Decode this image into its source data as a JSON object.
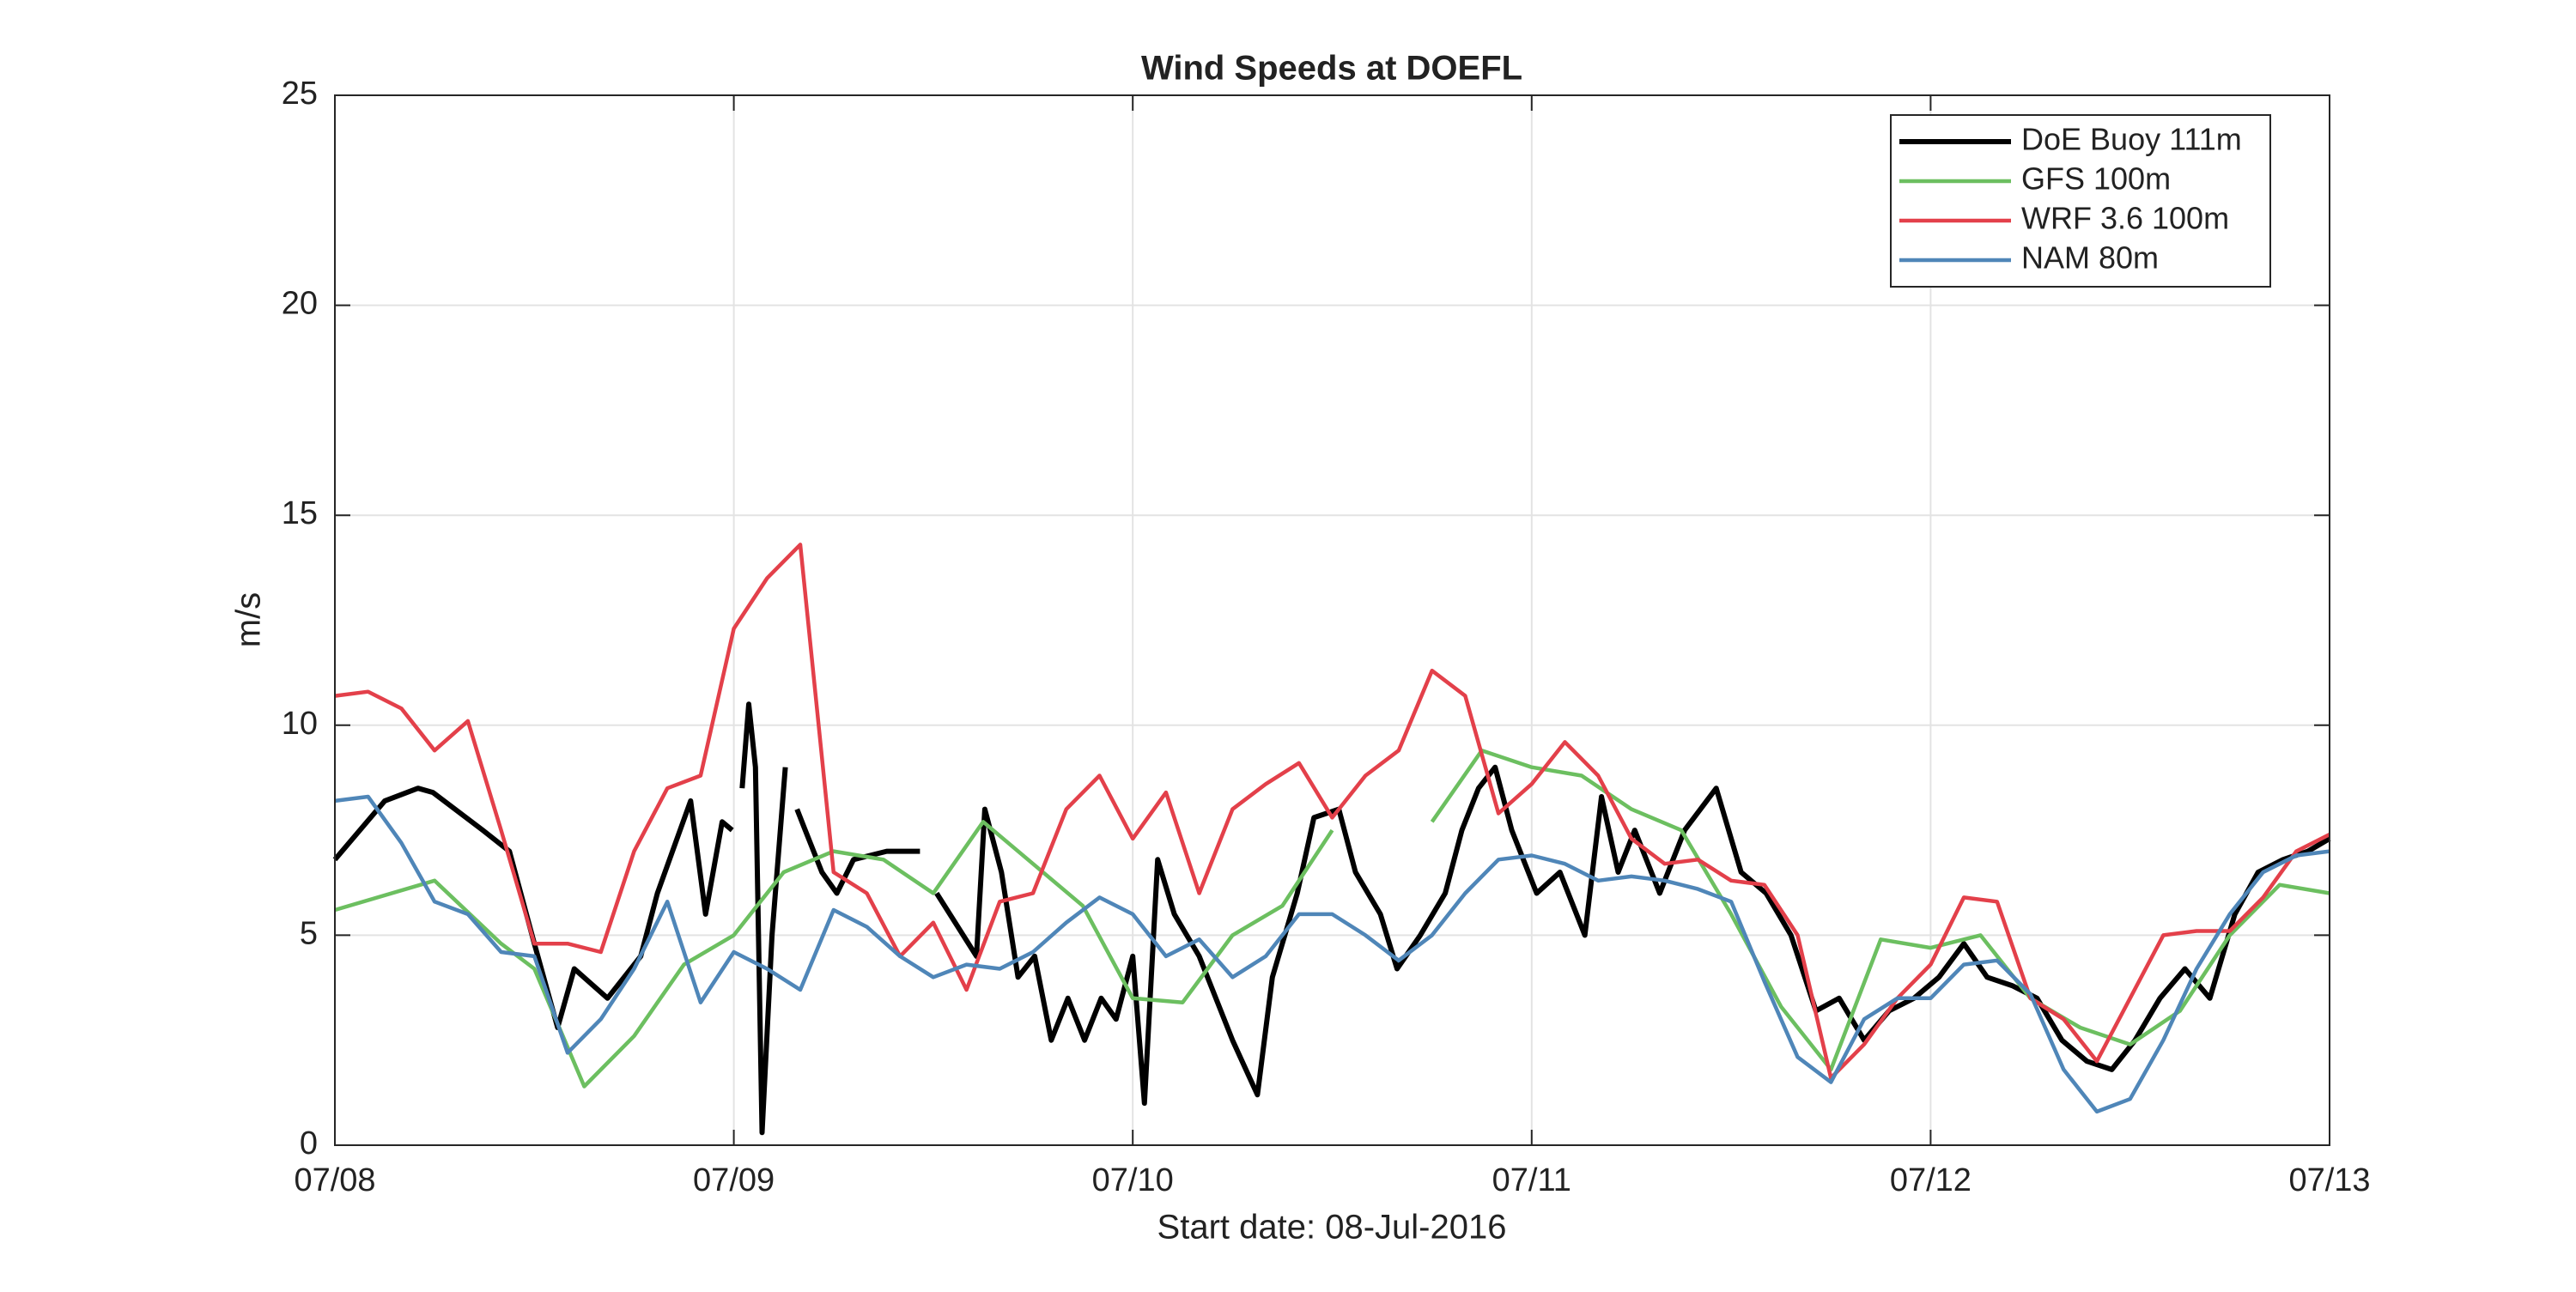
{
  "chart_data": {
    "type": "line",
    "title": "Wind Speeds at DOEFL",
    "xlabel": "Start date: 08-Jul-2016",
    "ylabel": "m/s",
    "xlim": [
      0,
      120
    ],
    "xticks": [
      {
        "value": 0,
        "label": "07/08"
      },
      {
        "value": 24,
        "label": "07/09"
      },
      {
        "value": 48,
        "label": "07/10"
      },
      {
        "value": 72,
        "label": "07/11"
      },
      {
        "value": 96,
        "label": "07/12"
      },
      {
        "value": 120,
        "label": "07/13"
      }
    ],
    "ylim": [
      0,
      25
    ],
    "yticks": [
      0,
      5,
      10,
      15,
      20,
      25
    ],
    "grid": true,
    "legend": "northeast",
    "series": [
      {
        "name": "DoE Buoy 111m",
        "color": "#000000",
        "x": [
          0,
          3,
          5,
          5.9,
          8.9,
          10.5,
          12,
          13.4,
          14.4,
          16.4,
          18.4,
          19.4,
          21.4,
          22.3,
          23.3,
          23.9,
          24.2,
          24.5,
          24.9,
          25.3,
          25.7,
          26.3,
          27.1,
          27.4,
          27.8,
          28.3,
          29.3,
          30.2,
          31.2,
          33.2,
          35.2,
          35.5,
          36.2,
          38.6,
          39.1,
          40.1,
          41.1,
          42.1,
          43.1,
          44.1,
          45.1,
          46.1,
          47,
          48,
          48.7,
          49.5,
          50.5,
          52,
          53,
          54,
          55.5,
          56.4,
          57.9,
          58.9,
          60.4,
          61.4,
          62.9,
          63.9,
          65.3,
          66.8,
          67.8,
          68.8,
          69.8,
          70.8,
          72.3,
          73.7,
          75.2,
          76.2,
          77.2,
          78.2,
          79.7,
          81.2,
          83.1,
          84.6,
          86.1,
          87.6,
          89.1,
          90.5,
          92,
          93.5,
          95,
          96.5,
          98,
          99.4,
          100.9,
          102.4,
          103.9,
          105.4,
          106.9,
          108.3,
          109.8,
          111.3,
          112.8,
          114.3,
          115.7,
          117.2,
          118.7,
          120
        ],
        "values": [
          6.8,
          8.2,
          8.5,
          8.4,
          7.5,
          7.0,
          4.8,
          2.8,
          4.2,
          3.5,
          4.5,
          6.0,
          8.2,
          5.5,
          7.7,
          7.5,
          null,
          8.5,
          10.5,
          9.0,
          0.3,
          5.0,
          9.0,
          null,
          8.0,
          7.5,
          6.5,
          6.0,
          6.8,
          7.0,
          7.0,
          null,
          6.0,
          4.5,
          8.0,
          6.5,
          4.0,
          4.5,
          2.5,
          3.5,
          2.5,
          3.5,
          3.0,
          4.5,
          1.0,
          6.8,
          5.5,
          4.5,
          3.5,
          2.5,
          1.2,
          4.0,
          6.0,
          7.8,
          8.0,
          6.5,
          5.5,
          4.2,
          5.0,
          6.0,
          7.5,
          8.5,
          9.0,
          7.5,
          6.0,
          6.5,
          5.0,
          8.3,
          6.5,
          7.5,
          6.0,
          7.5,
          8.5,
          6.5,
          6.0,
          5.0,
          3.2,
          3.5,
          2.5,
          3.2,
          3.5,
          4.0,
          4.8,
          4.0,
          3.8,
          3.5,
          2.5,
          2.0,
          1.8,
          2.5,
          3.5,
          4.2,
          3.5,
          5.5,
          6.5,
          6.8,
          7.0,
          7.3
        ]
      },
      {
        "name": "GFS 100m",
        "color": "#6cbf60",
        "x": [
          0,
          6,
          10,
          12,
          15,
          18,
          21,
          24,
          27,
          30,
          33,
          36,
          39,
          45,
          48,
          51,
          54,
          57,
          60,
          63,
          66,
          69,
          72,
          75,
          78,
          81,
          84,
          87,
          90,
          93,
          96,
          99,
          102,
          105,
          108,
          111,
          114,
          117,
          120
        ],
        "values": [
          5.6,
          6.3,
          4.8,
          4.2,
          1.4,
          2.6,
          4.3,
          5.0,
          6.5,
          7.0,
          6.8,
          6.0,
          7.7,
          5.7,
          3.5,
          3.4,
          5.0,
          5.7,
          7.5,
          null,
          7.7,
          9.4,
          9.0,
          8.8,
          8.0,
          7.5,
          5.5,
          3.3,
          1.8,
          4.9,
          4.7,
          5.0,
          3.5,
          2.8,
          2.4,
          3.2,
          5.0,
          6.2,
          6.0
        ]
      },
      {
        "name": "WRF 3.6 100m",
        "color": "#e3404a",
        "x": [
          0,
          2,
          4,
          6,
          8,
          10,
          12,
          14,
          16,
          18,
          20,
          22,
          24,
          26,
          28,
          30,
          32,
          34,
          36,
          38,
          40,
          42,
          44,
          46,
          48,
          50,
          52,
          54,
          56,
          58,
          60,
          62,
          64,
          66,
          68,
          70,
          72,
          74,
          76,
          78,
          80,
          82,
          84,
          86,
          88,
          90,
          92,
          94,
          96,
          98,
          100,
          102,
          104,
          106,
          108,
          110,
          112,
          114,
          116,
          118,
          120
        ],
        "values": [
          10.7,
          10.8,
          10.4,
          9.4,
          10.1,
          7.5,
          4.8,
          4.8,
          4.6,
          7.0,
          8.5,
          8.8,
          12.3,
          13.5,
          14.3,
          6.5,
          6.0,
          4.5,
          5.3,
          3.7,
          5.8,
          6.0,
          8.0,
          8.8,
          7.3,
          8.4,
          6.0,
          8.0,
          8.6,
          9.1,
          7.8,
          8.8,
          9.4,
          11.3,
          10.7,
          7.9,
          8.6,
          9.6,
          8.8,
          7.3,
          6.7,
          6.8,
          6.3,
          6.2,
          5.0,
          1.6,
          2.4,
          3.5,
          4.3,
          5.9,
          5.8,
          3.5,
          3.0,
          2.0,
          3.5,
          5.0,
          5.1,
          5.1,
          5.9,
          7.0,
          7.4
        ]
      },
      {
        "name": "NAM 80m",
        "color": "#4f86b8",
        "x": [
          0,
          2,
          4,
          6,
          8,
          10,
          12,
          14,
          16,
          18,
          20,
          22,
          24,
          26,
          28,
          30,
          32,
          34,
          36,
          38,
          40,
          42,
          44,
          46,
          48,
          50,
          52,
          54,
          56,
          58,
          60,
          62,
          64,
          66,
          68,
          70,
          72,
          74,
          76,
          78,
          80,
          82,
          84,
          86,
          88,
          90,
          92,
          94,
          96,
          98,
          100,
          102,
          104,
          106,
          108,
          110,
          112,
          114,
          116,
          118,
          120
        ],
        "values": [
          8.2,
          8.3,
          7.2,
          5.8,
          5.5,
          4.6,
          4.5,
          2.2,
          3.0,
          4.2,
          5.8,
          3.4,
          4.6,
          4.2,
          3.7,
          5.6,
          5.2,
          4.5,
          4.0,
          4.3,
          4.2,
          4.6,
          5.3,
          5.9,
          5.5,
          4.5,
          4.9,
          4.0,
          4.5,
          5.5,
          5.5,
          5.0,
          4.4,
          5.0,
          6.0,
          6.8,
          6.9,
          6.7,
          6.3,
          6.4,
          6.3,
          6.1,
          5.8,
          3.9,
          2.1,
          1.5,
          3.0,
          3.5,
          3.5,
          4.3,
          4.4,
          3.6,
          1.8,
          0.8,
          1.1,
          2.5,
          4.2,
          5.5,
          6.5,
          6.9,
          7.0
        ]
      }
    ]
  }
}
